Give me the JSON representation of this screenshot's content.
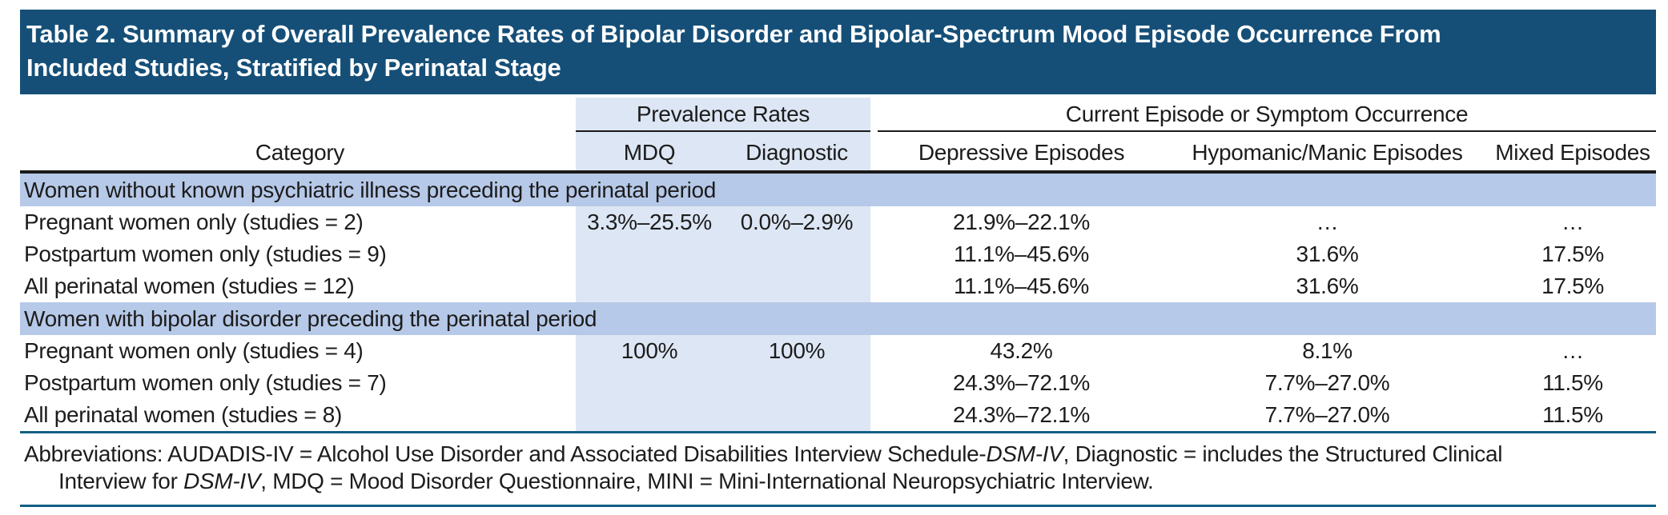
{
  "title": {
    "lines": [
      "Table 2. Summary of Overall Prevalence Rates of Bipolar Disorder and Bipolar-Spectrum Mood Episode Occurrence From",
      "Included Studies, Stratified by Perinatal Stage"
    ]
  },
  "header": {
    "category": "Category",
    "groups": [
      {
        "label": "Prevalence Rates",
        "columns": [
          "MDQ",
          "Diagnostic"
        ]
      },
      {
        "label": "Current Episode or Symptom Occurrence",
        "columns": [
          "Depressive Episodes",
          "Hypomanic/Manic Episodes",
          "Mixed Episodes"
        ]
      }
    ]
  },
  "sections": [
    {
      "header": "Women without known psychiatric illness preceding the perinatal period",
      "rows": [
        {
          "category": "Pregnant women only (studies = 2)",
          "mdq": "3.3%–25.5%",
          "diagnostic": "0.0%–2.9%",
          "depressive": "21.9%–22.1%",
          "hypomanic": "…",
          "mixed": "…"
        },
        {
          "category": "Postpartum women only (studies = 9)",
          "mdq": "",
          "diagnostic": "",
          "depressive": "11.1%–45.6%",
          "hypomanic": "31.6%",
          "mixed": "17.5%"
        },
        {
          "category": "All perinatal women (studies = 12)",
          "mdq": "",
          "diagnostic": "",
          "depressive": "11.1%–45.6%",
          "hypomanic": "31.6%",
          "mixed": "17.5%"
        }
      ]
    },
    {
      "header": "Women with bipolar disorder preceding the perinatal period",
      "rows": [
        {
          "category": "Pregnant women only (studies = 4)",
          "mdq": "100%",
          "diagnostic": "100%",
          "depressive": "43.2%",
          "hypomanic": "8.1%",
          "mixed": "…"
        },
        {
          "category": "Postpartum women only (studies = 7)",
          "mdq": "",
          "diagnostic": "",
          "depressive": "24.3%–72.1%",
          "hypomanic": "7.7%–27.0%",
          "mixed": "11.5%"
        },
        {
          "category": "All perinatal women (studies = 8)",
          "mdq": "",
          "diagnostic": "",
          "depressive": "24.3%–72.1%",
          "hypomanic": "7.7%–27.0%",
          "mixed": "11.5%"
        }
      ]
    }
  ],
  "footnote": {
    "lines": [
      [
        {
          "text": "Abbreviations: AUDADIS-IV = Alcohol Use Disorder and Associated Disabilities Interview Schedule-",
          "italic": false
        },
        {
          "text": "DSM-IV",
          "italic": true
        },
        {
          "text": ", Diagnostic = includes the Structured Clinical",
          "italic": false
        }
      ],
      [
        {
          "text": "Interview for ",
          "italic": false
        },
        {
          "text": "DSM-IV",
          "italic": true
        },
        {
          "text": ", MDQ = Mood Disorder Questionnaire, MINI = Mini-International Neuropsychiatric Interview.",
          "italic": false
        }
      ]
    ]
  },
  "colors": {
    "title_bar": "#154f78",
    "section_band": "#b7c9e8",
    "column_band": "#dde6f4",
    "header_rule": "#1a1a1a",
    "blue_rule": "#135e85"
  }
}
